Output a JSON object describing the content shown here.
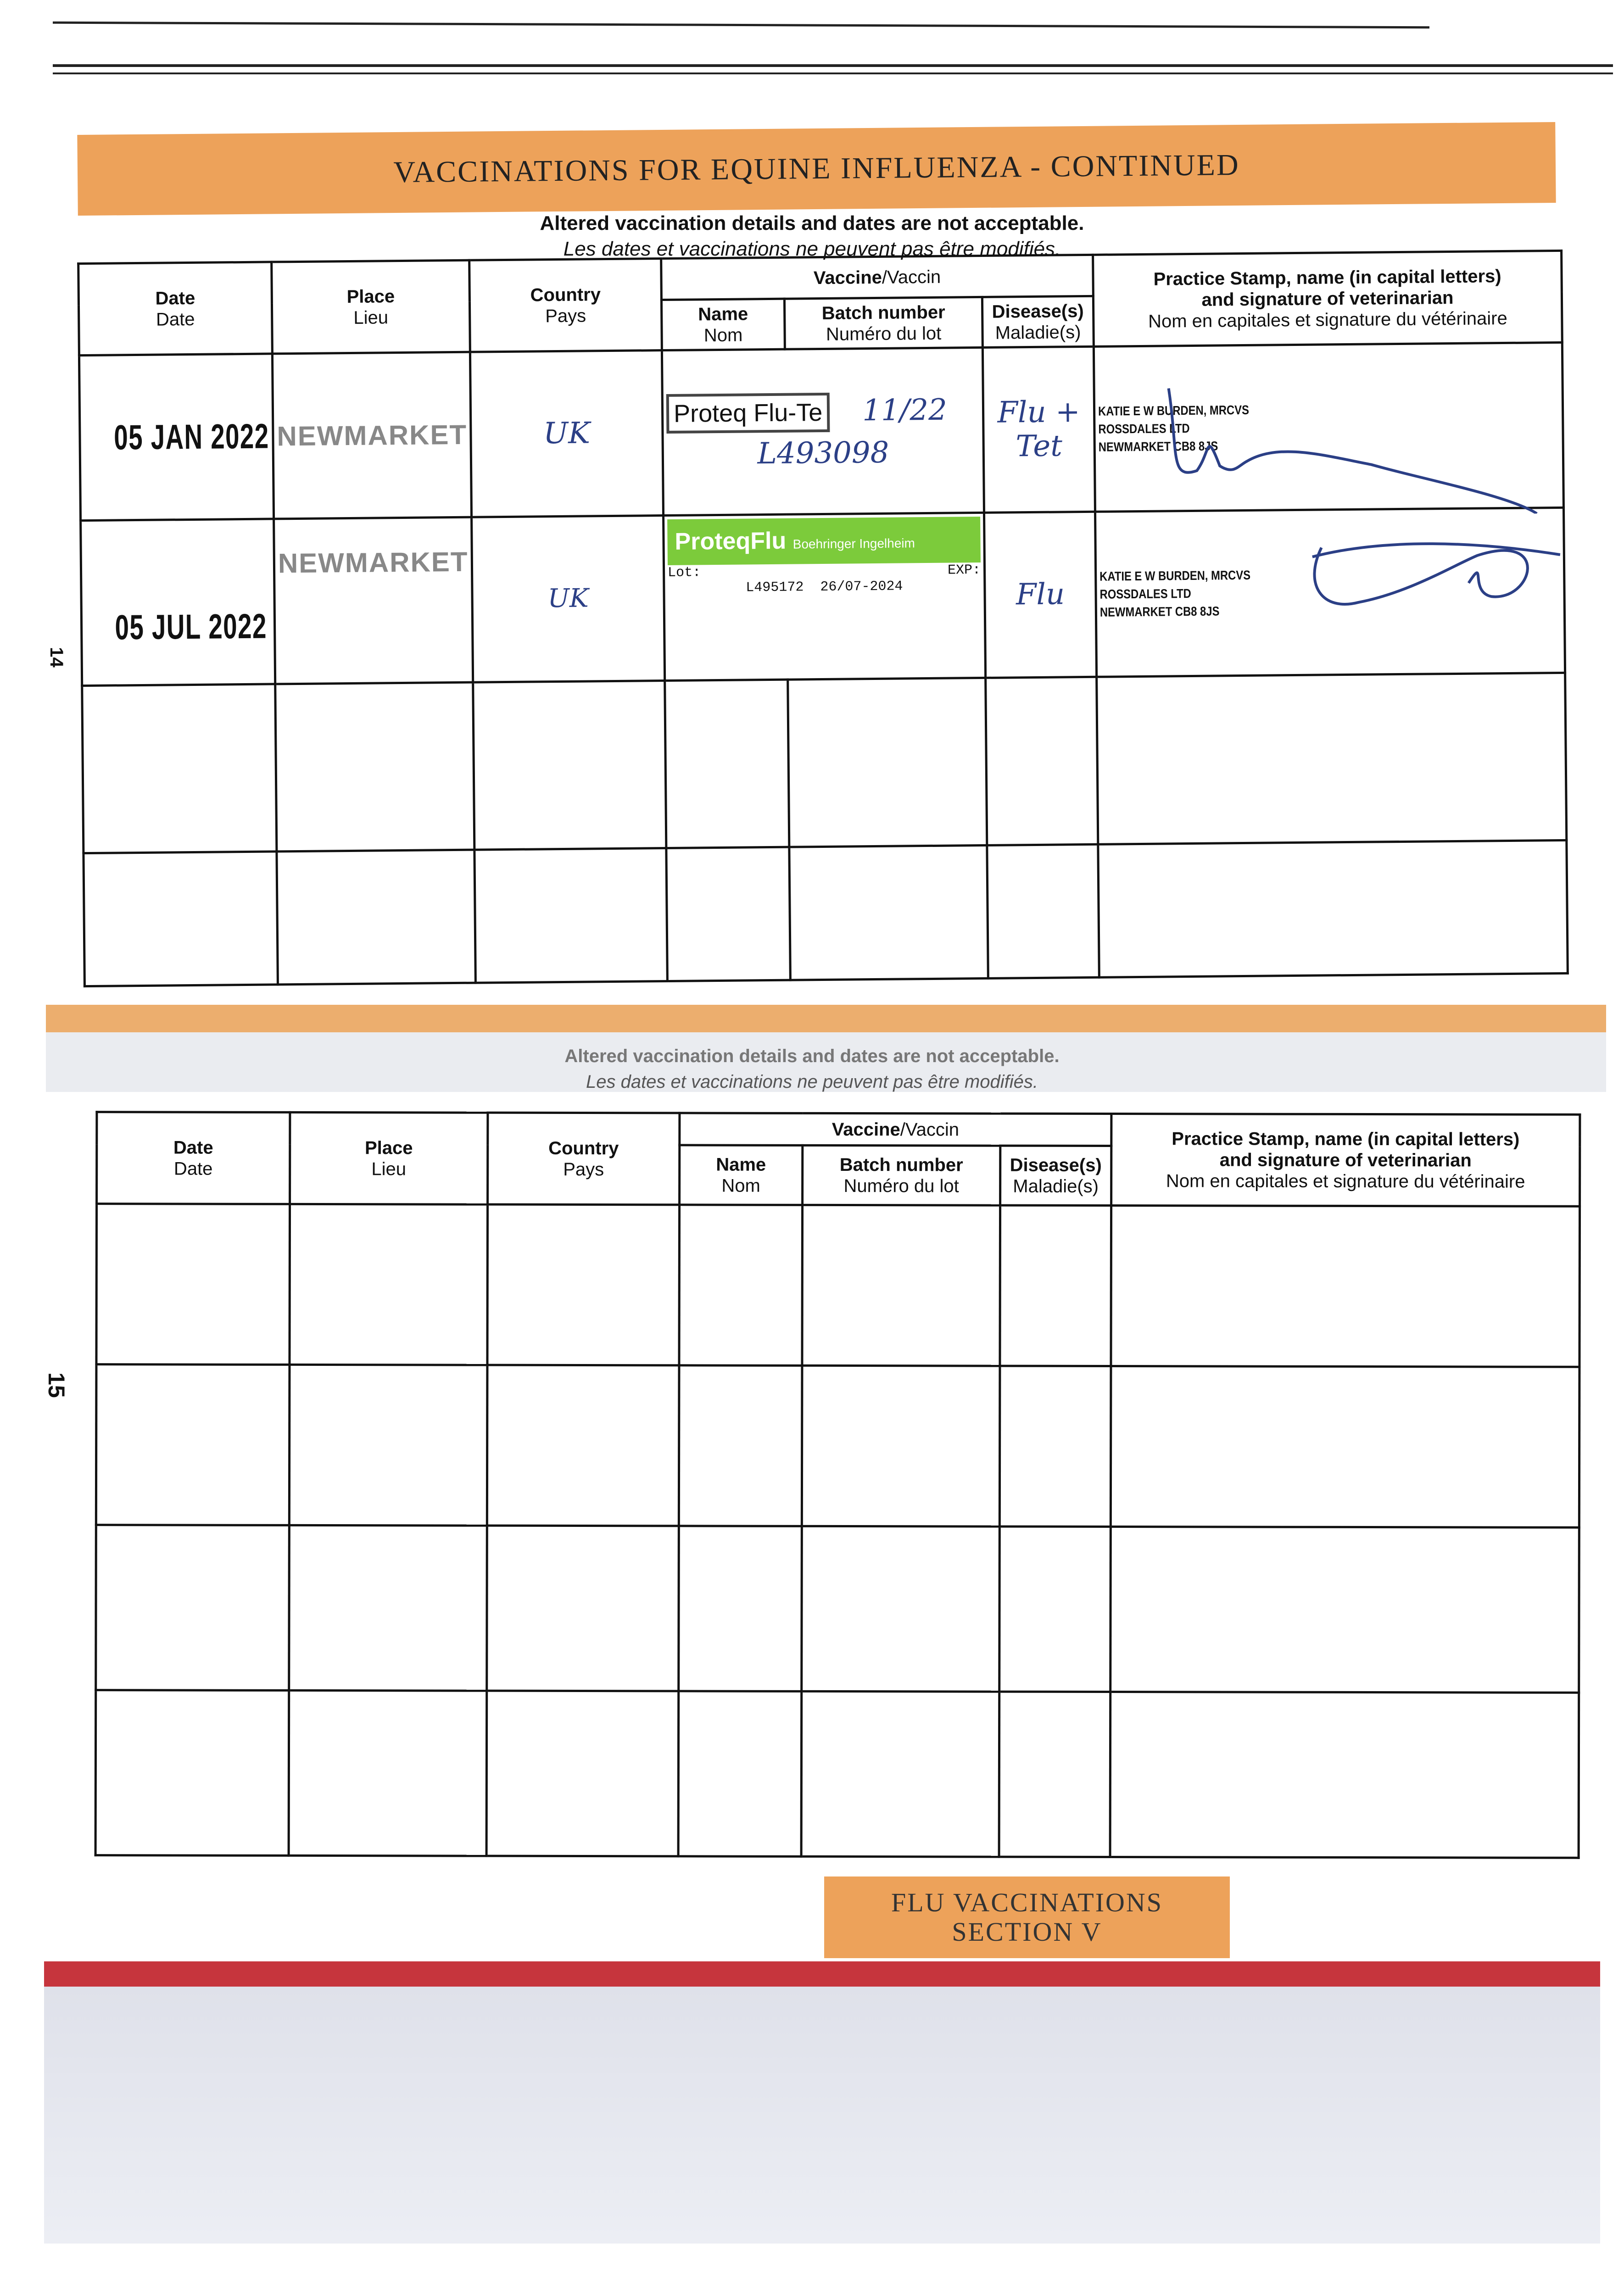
{
  "page": {
    "title": "VACCINATIONS FOR EQUINE INFLUENZA - CONTINUED",
    "notice_en": "Altered vaccination details and dates are not acceptable.",
    "notice_fr": "Les dates et vaccinations ne peuvent pas être modifiés.",
    "page_left": "14",
    "page_right": "15",
    "section_line1": "FLU VACCINATIONS",
    "section_line2": "SECTION V"
  },
  "headers": {
    "date": "Date",
    "date_fr": "Date",
    "place": "Place",
    "place_fr": "Lieu",
    "country": "Country",
    "country_fr": "Pays",
    "vaccine_en": "Vaccine",
    "vaccine_fr": "/Vaccin",
    "name": "Name",
    "name_fr": "Nom",
    "batch": "Batch number",
    "batch_fr": "Numéro du lot",
    "disease": "Disease(s)",
    "disease_fr": "Maladie(s)",
    "stamp_l1": "Practice Stamp, name (in capital letters)",
    "stamp_l2": "and signature of veterinarian",
    "stamp_fr": "Nom en capitales et signature du vétérinaire"
  },
  "entries": [
    {
      "date": "05 JAN 2022",
      "place": "NEWMARKET",
      "country": "UK",
      "vaccine_name": "Proteq Flu-Te",
      "batch": "L493098",
      "expiry": "11/22",
      "disease": "Flu + Tet",
      "vet_name": "KATIE E W BURDEN, MRCVS",
      "vet_practice": "ROSSDALES LTD",
      "vet_address": "NEWMARKET CB8 8JS"
    },
    {
      "date": "05 JUL 2022",
      "place": "NEWMARKET",
      "country": "UK",
      "vaccine_name": "ProteqFlu",
      "vaccine_maker": "Boehringer Ingelheim",
      "lot_label": "Lot:",
      "exp_label": "EXP:",
      "batch": "L495172",
      "expiry": "26/07-2024",
      "disease": "Flu",
      "vet_name": "KATIE E W BURDEN, MRCVS",
      "vet_practice": "ROSSDALES LTD",
      "vet_address": "NEWMARKET CB8 8JS"
    }
  ],
  "colors": {
    "banner": "#eda25a",
    "sticker": "#7ccb3b",
    "ink": "#2b3f86",
    "red_bar": "#c6353d"
  }
}
